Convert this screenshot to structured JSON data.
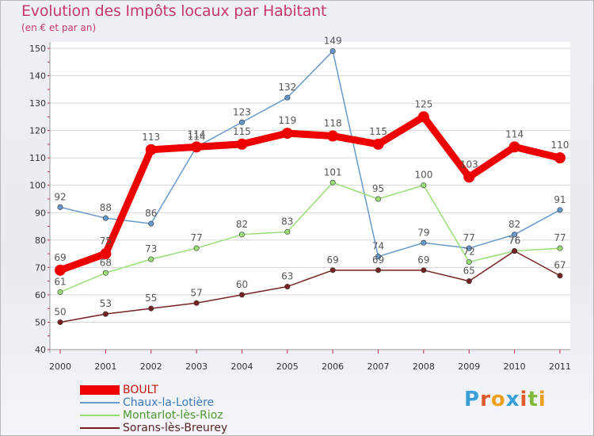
{
  "chart_data": {
    "type": "line",
    "title": "Evolution des Impôts locaux par Habitant",
    "subtitle": "(en € et par an)",
    "xlabel": "",
    "ylabel": "",
    "categories": [
      "2000",
      "2001",
      "2002",
      "2003",
      "2004",
      "2005",
      "2006",
      "2007",
      "2008",
      "2009",
      "2010",
      "2011"
    ],
    "ylim": [
      40,
      150
    ],
    "yticks": [
      40,
      50,
      60,
      70,
      80,
      90,
      100,
      110,
      120,
      130,
      140,
      150
    ],
    "grid": "horizontal",
    "legend_position": "bottom-left",
    "series": [
      {
        "name": "BOULT",
        "color": "#ee0000",
        "values": [
          69,
          75,
          113,
          114,
          115,
          119,
          118,
          115,
          125,
          103,
          114,
          110
        ]
      },
      {
        "name": "Chaux-la-Lotière",
        "color": "#6699cc",
        "values": [
          92,
          88,
          86,
          114,
          123,
          132,
          149,
          74,
          79,
          77,
          82,
          91
        ]
      },
      {
        "name": "Montarlot-lès-Rioz",
        "color": "#99dd77",
        "values": [
          61,
          68,
          73,
          77,
          82,
          83,
          101,
          95,
          100,
          72,
          76,
          77
        ]
      },
      {
        "name": "Sorans-lès-Breurey",
        "color": "#772222",
        "values": [
          50,
          53,
          55,
          57,
          60,
          63,
          69,
          69,
          69,
          65,
          76,
          67
        ]
      }
    ]
  },
  "brand": {
    "letters": [
      "P",
      "r",
      "o",
      "x",
      "i",
      "t",
      "i"
    ],
    "colors": [
      "#3aa0d8",
      "#e05a2a",
      "#f0a020",
      "#3aa0d8",
      "#e05a2a",
      "#80b838",
      "#f0a020"
    ]
  }
}
